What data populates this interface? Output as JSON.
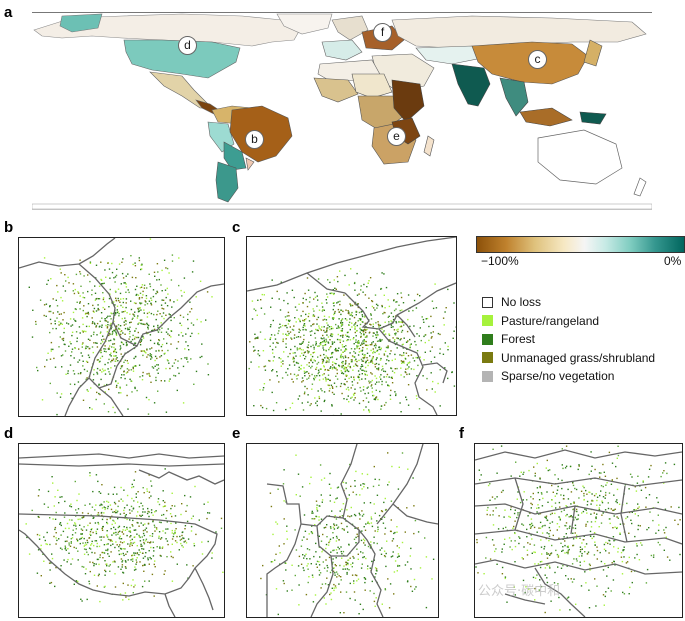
{
  "panels": {
    "a": "a",
    "b": "b",
    "c": "c",
    "d": "d",
    "e": "e",
    "f": "f"
  },
  "map_callouts": {
    "b": "b",
    "c": "c",
    "d": "d",
    "e": "e",
    "f": "f"
  },
  "colorbar": {
    "min_label": "−100%",
    "max_label": "0%",
    "colors": [
      "#8c510a",
      "#bf812d",
      "#dfc27d",
      "#f6e8c3",
      "#f5f5f5",
      "#c7eae5",
      "#80cdc1",
      "#35978f",
      "#01665e"
    ]
  },
  "legend": {
    "items": [
      {
        "label": "No loss",
        "color": "#ffffff"
      },
      {
        "label": "Pasture/rangeland",
        "color": "#a6f23c"
      },
      {
        "label": "Forest",
        "color": "#2f7d1c"
      },
      {
        "label": "Unmanaged grass/shrubland",
        "color": "#7a7a10"
      },
      {
        "label": "Sparse/no vegetation",
        "color": "#b4b4b4"
      }
    ]
  },
  "watermark": "公众号·碳中和"
}
